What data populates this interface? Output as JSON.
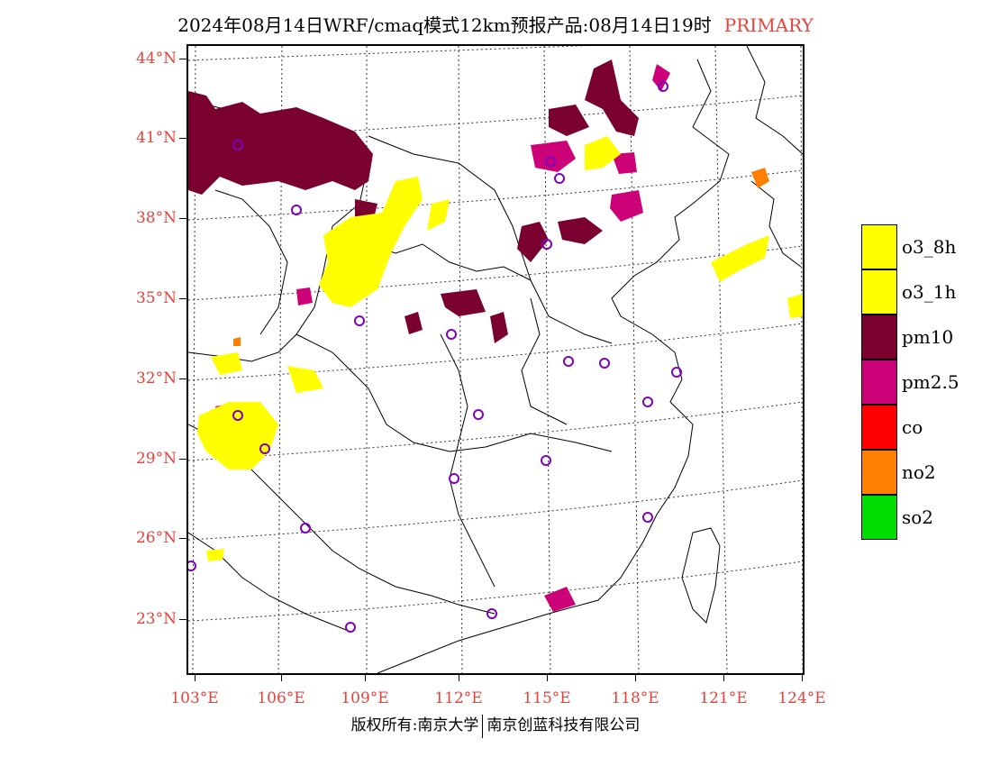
{
  "title": {
    "main": "2024年08月14日WRF/cmaq模式12km预报产品:08月14日19时",
    "mode": "PRIMARY"
  },
  "map": {
    "lat_labels": [
      "44°N",
      "41°N",
      "38°N",
      "35°N",
      "32°N",
      "29°N",
      "26°N",
      "23°N"
    ],
    "lon_labels": [
      "103°E",
      "106°E",
      "109°E",
      "112°E",
      "115°E",
      "118°E",
      "121°E",
      "124°E"
    ]
  },
  "legend": [
    {
      "label": "o3_8h",
      "color": "#ffff00"
    },
    {
      "label": "o3_1h",
      "color": "#ffff00"
    },
    {
      "label": "pm10",
      "color": "#7a0030"
    },
    {
      "label": "pm2.5",
      "color": "#cc0077"
    },
    {
      "label": "co",
      "color": "#ff0000"
    },
    {
      "label": "no2",
      "color": "#ff7f00"
    },
    {
      "label": "so2",
      "color": "#00dd00"
    }
  ],
  "footer": {
    "left": "版权所有:南京大学",
    "right": "南京创蓝科技有限公司"
  }
}
